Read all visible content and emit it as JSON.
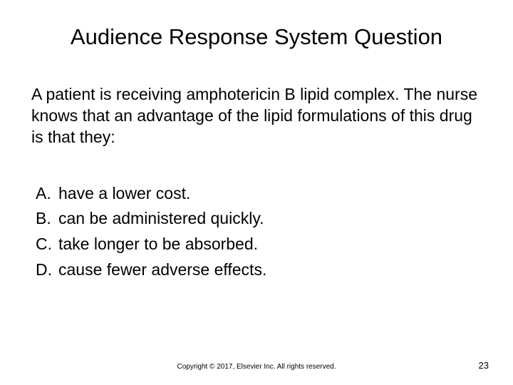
{
  "slide": {
    "title": "Audience Response System Question",
    "question": "A patient is receiving amphotericin B lipid complex. The nurse knows that an advantage of the lipid formulations of this drug is that they:",
    "options": [
      {
        "letter": "A.",
        "text": "have a lower cost."
      },
      {
        "letter": "B.",
        "text": "can be administered quickly."
      },
      {
        "letter": "C.",
        "text": "take longer to be absorbed."
      },
      {
        "letter": "D.",
        "text": "cause fewer adverse effects."
      }
    ],
    "copyright": "Copyright © 2017, Elsevier Inc. All rights reserved.",
    "page_number": "23",
    "colors": {
      "background": "#ffffff",
      "text": "#000000"
    },
    "typography": {
      "title_fontsize": 31,
      "body_fontsize": 23,
      "copyright_fontsize": 10,
      "pagenum_fontsize": 13,
      "font_family": "Arial"
    }
  }
}
